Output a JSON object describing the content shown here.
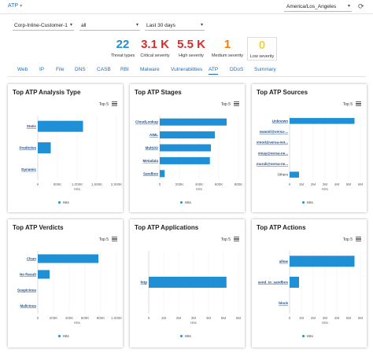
{
  "header": {
    "breadcrumb": "ATP",
    "timezone": "America/Los_Angeles"
  },
  "filters": {
    "tenant": "Corp-Inline-Customer-1",
    "scope": "all",
    "range": "Last 30 days"
  },
  "stats": [
    {
      "value": "22",
      "label": "Threat types",
      "color": "#1f8fd6"
    },
    {
      "value": "3.1 K",
      "label": "Critical severity",
      "color": "#d32f2f"
    },
    {
      "value": "5.5 K",
      "label": "High severity",
      "color": "#d32f2f"
    },
    {
      "value": "1",
      "label": "Medium severity",
      "color": "#f57c00"
    },
    {
      "value": "0",
      "label": "Low severity",
      "color": "#f2d33b"
    }
  ],
  "tabs": [
    "Web",
    "IP",
    "File",
    "DNS",
    "CASB",
    "RBI",
    "Malware",
    "Vulnerabilities",
    "ATP",
    "DDoS",
    "Summary"
  ],
  "active_tab": "ATP",
  "common": {
    "top5": "Top 5",
    "axis_title": "Hits",
    "legend": "Hits",
    "bar_color": "#1f8fd6"
  },
  "chart_data": [
    {
      "type": "bar",
      "title": "Top ATP Analysis Type",
      "orientation": "horizontal",
      "categories": [
        "Static",
        "Predictive",
        "Dynamic"
      ],
      "values": [
        1150000,
        330000,
        0
      ],
      "xticks": [
        "0",
        "500K",
        "1,000K",
        "1,500K",
        "2,000K"
      ],
      "xlim": [
        0,
        2000000
      ],
      "xlabel": "Hits",
      "legend": "Hits"
    },
    {
      "type": "bar",
      "title": "Top ATP Stages",
      "orientation": "horizontal",
      "categories": [
        "CloudLookup",
        "AIML",
        "MultiAV",
        "Metadata",
        "Sandbox"
      ],
      "values": [
        680000,
        560000,
        520000,
        510000,
        50000
      ],
      "xticks": [
        "0",
        "200K",
        "400K",
        "600K",
        "800K"
      ],
      "xlim": [
        0,
        800000
      ],
      "xlabel": "Hits",
      "legend": "Hits"
    },
    {
      "type": "bar",
      "title": "Top ATP Sources",
      "orientation": "horizontal",
      "categories": [
        "Unknown",
        "swamil@versa-...",
        "vinod@versa-net...",
        "vinay@versa-ne...",
        "murali@versa-ne...",
        "Others"
      ],
      "values": [
        5500000,
        0,
        0,
        0,
        0,
        800000
      ],
      "xticks": [
        "0",
        "1M",
        "2M",
        "3M",
        "4M",
        "5M",
        "6M"
      ],
      "xlim": [
        0,
        6000000
      ],
      "xlabel": "Hits",
      "legend": "Hits"
    },
    {
      "type": "bar",
      "title": "Top ATP Verdicts",
      "orientation": "horizontal",
      "categories": [
        "Clean",
        "No Result",
        "Suspicious",
        "Malicious"
      ],
      "values": [
        770000,
        150000,
        0,
        0
      ],
      "xticks": [
        "0",
        "200K",
        "400K",
        "600K",
        "800K",
        "1,000K"
      ],
      "xlim": [
        0,
        1000000
      ],
      "xlabel": "Hits",
      "legend": "Hits"
    },
    {
      "type": "bar",
      "title": "Top ATP Applications",
      "orientation": "horizontal",
      "categories": [
        "http"
      ],
      "values": [
        5200000
      ],
      "xticks": [
        "0",
        "1M",
        "2M",
        "3M",
        "4M",
        "5M",
        "6M"
      ],
      "xlim": [
        0,
        6000000
      ],
      "xlabel": "Hits",
      "legend": "Hits"
    },
    {
      "type": "bar",
      "title": "Top ATP Actions",
      "orientation": "horizontal",
      "categories": [
        "allow",
        "send_to_sandbox",
        "block"
      ],
      "values": [
        5500000,
        800000,
        0
      ],
      "xticks": [
        "0",
        "1M",
        "2M",
        "3M",
        "4M",
        "5M",
        "6M"
      ],
      "xlim": [
        0,
        6000000
      ],
      "xlabel": "Hits",
      "legend": "Hits"
    }
  ]
}
